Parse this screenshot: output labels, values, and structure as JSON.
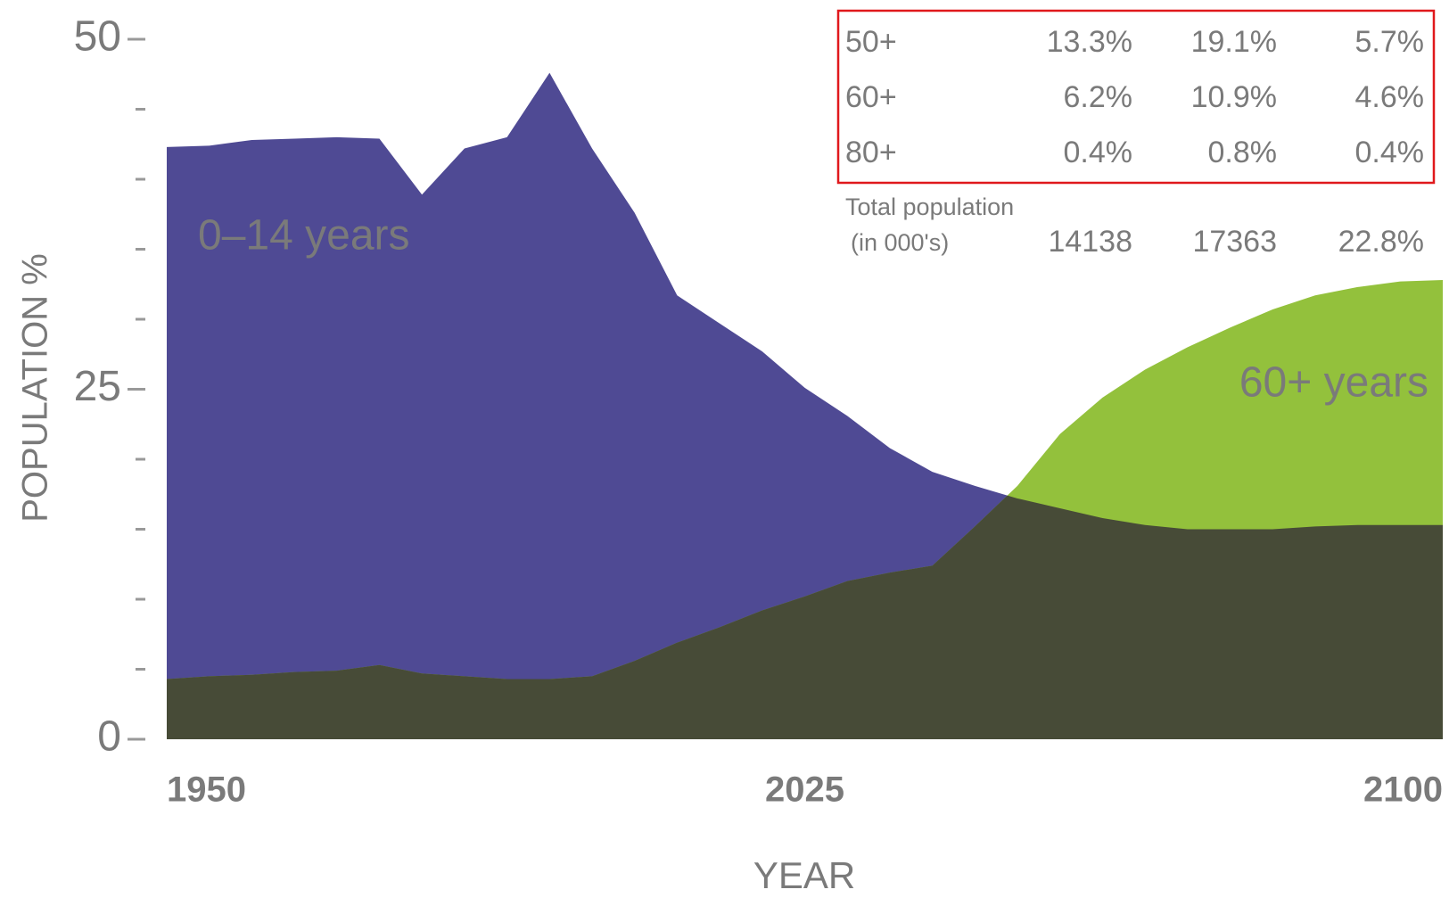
{
  "chart_data": {
    "type": "area",
    "x_label": "YEAR",
    "y_label": "POPULATION %",
    "x": [
      1950,
      1955,
      1960,
      1965,
      1970,
      1975,
      1980,
      1985,
      1990,
      1995,
      2000,
      2005,
      2010,
      2015,
      2020,
      2025,
      2030,
      2035,
      2040,
      2045,
      2050,
      2055,
      2060,
      2065,
      2070,
      2075,
      2080,
      2085,
      2090,
      2095,
      2100
    ],
    "series": [
      {
        "name": "0–14 years",
        "color": "#4f4a94",
        "label_color": "#eceaf6",
        "values": [
          42.3,
          42.4,
          42.8,
          42.9,
          43.0,
          42.9,
          38.9,
          42.2,
          43.0,
          47.6,
          42.2,
          37.6,
          31.7,
          29.7,
          27.7,
          25.1,
          23.1,
          20.8,
          19.1,
          18.1,
          17.2,
          16.5,
          15.8,
          15.3,
          15.0,
          15.0,
          15.0,
          15.2,
          15.3,
          15.3,
          15.3
        ]
      },
      {
        "name": "60+ years",
        "color": "#93c13c",
        "label_color": "#eef5d8",
        "values": [
          4.3,
          4.5,
          4.6,
          4.8,
          4.9,
          5.3,
          4.7,
          4.5,
          4.3,
          4.3,
          4.5,
          5.6,
          6.9,
          8.0,
          9.2,
          10.2,
          11.3,
          11.9,
          12.4,
          15.2,
          18.1,
          21.8,
          24.4,
          26.4,
          28.0,
          29.4,
          30.7,
          31.7,
          32.3,
          32.7,
          32.8
        ]
      }
    ],
    "overlap_color": "#474b37",
    "xlim": [
      1950,
      2100
    ],
    "xticks": [
      1950,
      2025,
      2100
    ],
    "ylim": [
      0,
      50
    ],
    "yticks": [
      0,
      25,
      50
    ],
    "yminor_ticks": [
      5,
      10,
      15,
      20,
      30,
      35,
      40,
      45
    ],
    "table": {
      "rows": [
        [
          "50+",
          "13.3%",
          "19.1%",
          "5.7%"
        ],
        [
          "60+",
          "6.2%",
          "10.9%",
          "4.6%"
        ],
        [
          "80+",
          "0.4%",
          "0.8%",
          "0.4%"
        ]
      ],
      "total_label": [
        "Total population",
        "(in 000's)"
      ],
      "total_values": [
        "14138",
        "17363",
        "22.8%"
      ]
    }
  }
}
